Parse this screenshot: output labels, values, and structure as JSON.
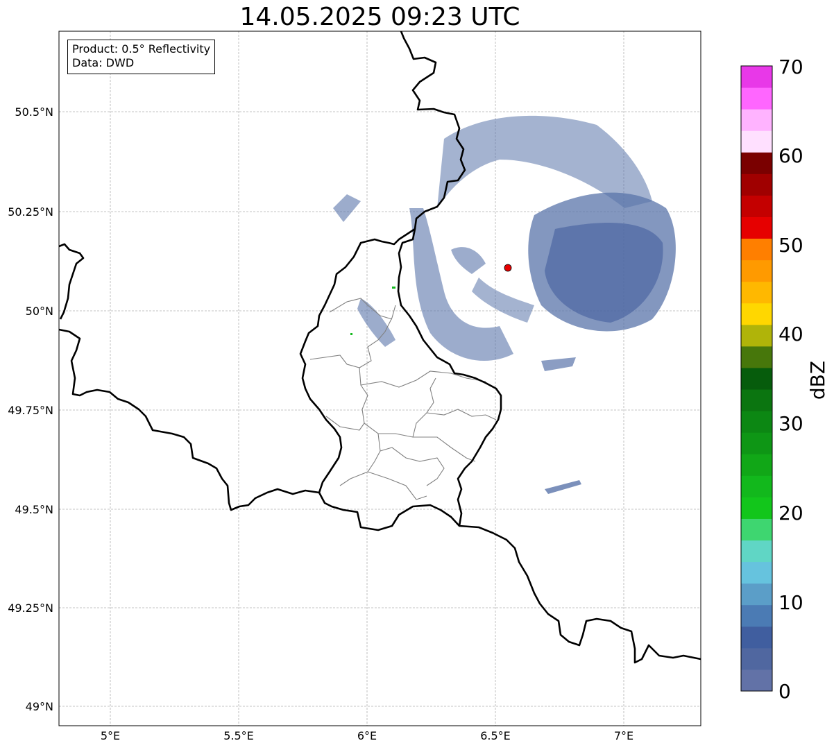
{
  "title": "14.05.2025 09:23 UTC",
  "info": {
    "product": "Product: 0.5° Reflectivity",
    "data": "Data: DWD"
  },
  "axes": {
    "lon_ticks": [
      "5°E",
      "5.5°E",
      "6°E",
      "6.5°E",
      "7°E"
    ],
    "lat_ticks": [
      "50.5°N",
      "50.25°N",
      "50°N",
      "49.75°N",
      "49.5°N",
      "49.25°N",
      "49°N"
    ]
  },
  "colorbar": {
    "label": "dBZ",
    "ticks": [
      "0",
      "10",
      "20",
      "30",
      "40",
      "50",
      "60",
      "70"
    ],
    "colors": [
      "#6272a7",
      "#5067a0",
      "#405e9f",
      "#4b7bb4",
      "#5b9ec8",
      "#66c3de",
      "#60d6c5",
      "#3ed670",
      "#12c61b",
      "#12b81c",
      "#11a717",
      "#0e9615",
      "#0c8713",
      "#0b7510",
      "#065c0c",
      "#47770b",
      "#b0b409",
      "#ffd700",
      "#ffb800",
      "#ff9a00",
      "#ff7f00",
      "#e60000",
      "#c40000",
      "#a00000",
      "#7a0000",
      "#ffe0ff",
      "#ffb3ff",
      "#ff66ff",
      "#e838e8"
    ]
  },
  "radar_site": {
    "lon": 6.55,
    "lat": 50.11
  }
}
